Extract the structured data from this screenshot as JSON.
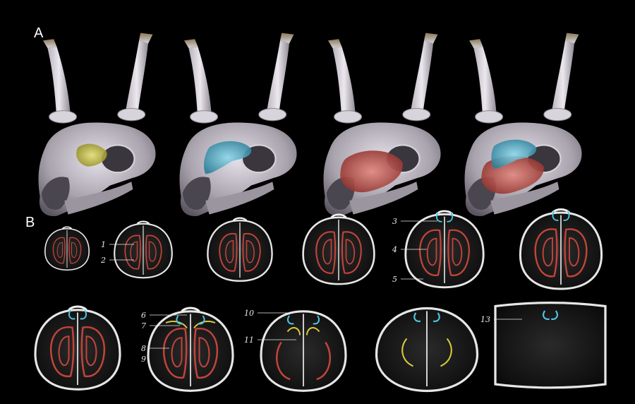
{
  "panels": {
    "a_label": "A",
    "b_label": "B"
  },
  "colors": {
    "background": "#000000",
    "bone": "#c9c3cc",
    "antler_tip": "#8a7a55",
    "highlight_yellow": "#c8c23a",
    "highlight_cyan": "#3fa6c4",
    "highlight_red": "#b8413b",
    "outline_yellow": "#d9c93a",
    "outline_cyan": "#4fc6e0",
    "outline_red": "#c2443a",
    "label_text": "#e8e8e8"
  },
  "panel_a": {
    "renders": [
      {
        "highlight": "yellow"
      },
      {
        "highlight": "cyan"
      },
      {
        "highlight": "red"
      },
      {
        "highlight": "cyan+red"
      }
    ]
  },
  "panel_b": {
    "labels": [
      "1",
      "2",
      "3",
      "4",
      "5",
      "6",
      "7",
      "8",
      "9",
      "10",
      "11",
      "13"
    ]
  }
}
